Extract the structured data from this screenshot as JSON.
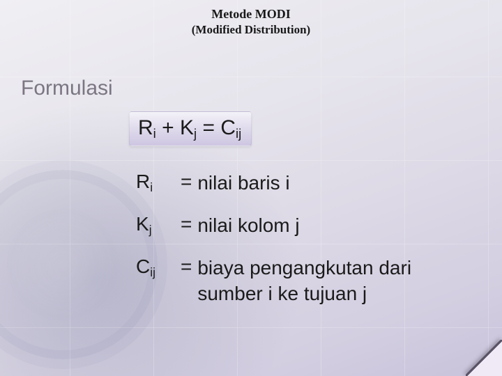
{
  "header": {
    "title_line1": "Metode MODI",
    "title_line2": "(Modified Distribution)"
  },
  "section_label": "Formulasi",
  "formula": {
    "r_var": "R",
    "r_sub": "i",
    "plus": " + ",
    "k_var": "K",
    "k_sub": "j",
    "equals": " = ",
    "c_var": "C",
    "c_sub": "ij"
  },
  "definitions": [
    {
      "var": "R",
      "sub": "i",
      "eq": "=",
      "text": "nilai baris i"
    },
    {
      "var": "K",
      "sub": "j",
      "eq": "=",
      "text": "nilai kolom j"
    },
    {
      "var": "C",
      "sub": "ij",
      "eq": "=",
      "text": "biaya pengangkutan dari sumber  i  ke tujuan  j"
    }
  ],
  "colors": {
    "title_color": "#181818",
    "section_color": "#7b7682",
    "body_text": "#1a1a1a",
    "formula_bg_top": "#f3f1f8",
    "formula_bg_bottom": "#cec6e2",
    "page_bg_light": "#f0eff3",
    "page_bg_dark": "#c8c2db"
  },
  "typography": {
    "title_fontsize_pt": 13,
    "section_fontsize_pt": 22,
    "body_fontsize_pt": 21
  }
}
